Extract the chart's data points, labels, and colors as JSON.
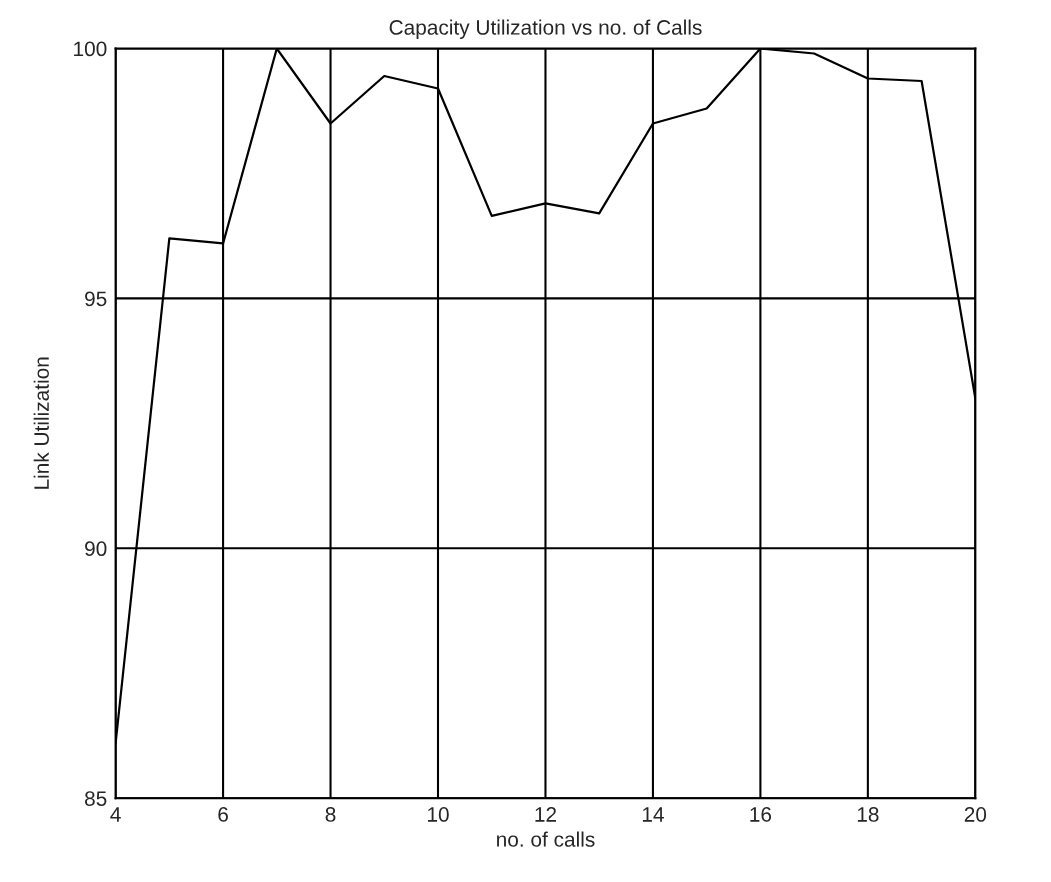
{
  "chart_data": {
    "type": "line",
    "title": "Capacity Utilization vs no. of Calls",
    "xlabel": "no. of calls",
    "ylabel": "Link Utilization",
    "x": [
      4,
      5,
      6,
      7,
      8,
      9,
      10,
      11,
      12,
      13,
      14,
      15,
      16,
      17,
      18,
      19,
      20
    ],
    "series": [
      {
        "color": "#000000",
        "values": [
          86.1,
          96.2,
          96.1,
          100,
          98.5,
          99.45,
          99.2,
          96.65,
          96.9,
          96.7,
          98.5,
          98.8,
          100,
          99.9,
          99.4,
          99.35,
          93.0
        ]
      }
    ],
    "xlim": [
      4,
      20
    ],
    "xticks": [
      4,
      6,
      8,
      10,
      12,
      14,
      16,
      18,
      20
    ],
    "ylim": [
      85,
      100
    ],
    "yticks": [
      85,
      90,
      95,
      100
    ],
    "grid": true
  }
}
